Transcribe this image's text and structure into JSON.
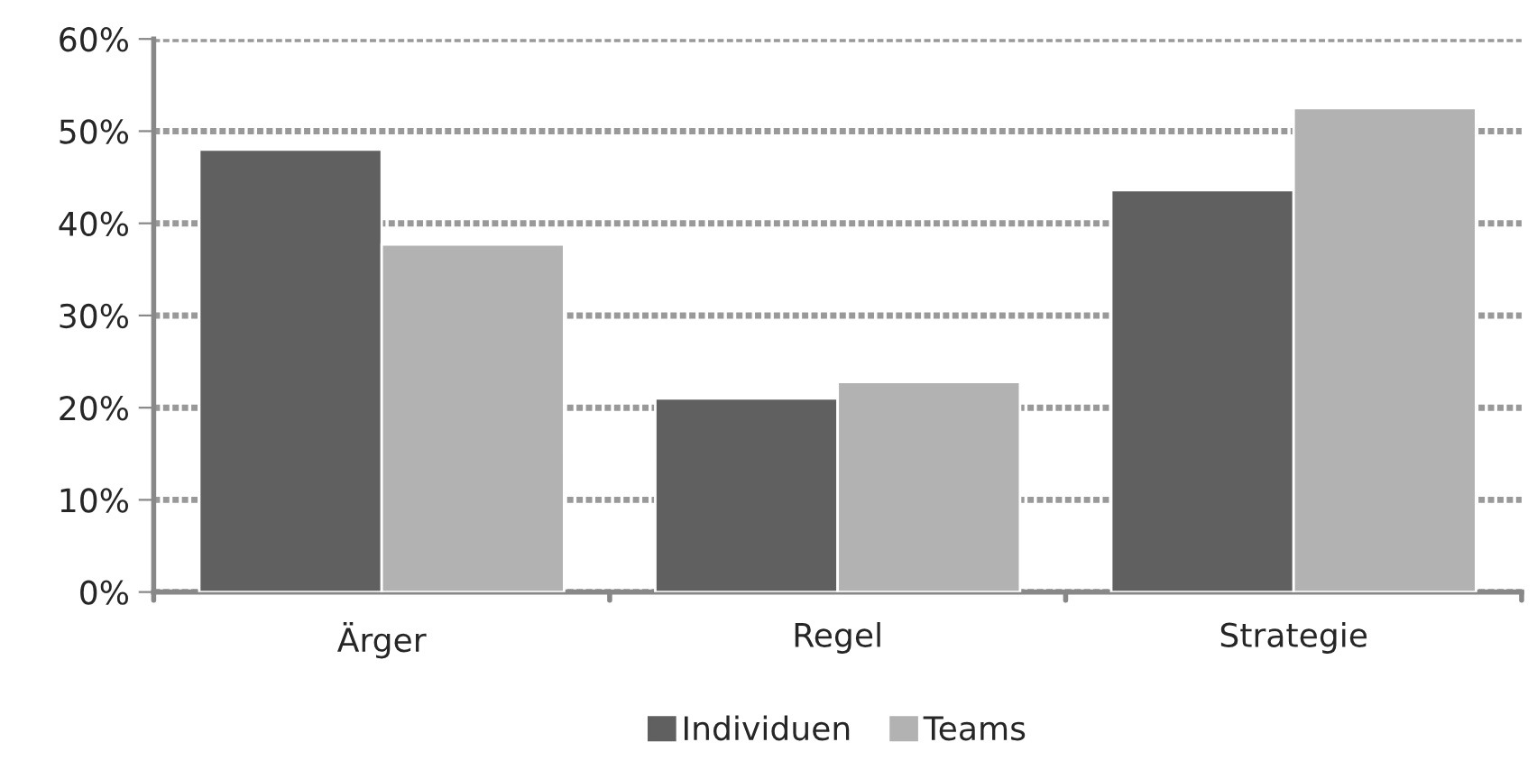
{
  "chart_data": {
    "type": "bar",
    "categories": [
      "Ärger",
      "Regel",
      "Strategie"
    ],
    "series": [
      {
        "name": "Individuen",
        "color": "#606060",
        "values": [
          48,
          21,
          43.6
        ]
      },
      {
        "name": "Teams",
        "color": "#b2b2b2",
        "values": [
          37.7,
          22.8,
          52.5
        ]
      }
    ],
    "ylim": [
      0,
      60
    ],
    "yticks": [
      {
        "value": 0,
        "label": "0%"
      },
      {
        "value": 10,
        "label": "10%"
      },
      {
        "value": 20,
        "label": "20%"
      },
      {
        "value": 30,
        "label": "30%"
      },
      {
        "value": 40,
        "label": "40%"
      },
      {
        "value": 50,
        "label": "50%"
      },
      {
        "value": 60,
        "label": "60%"
      }
    ],
    "grid": "y",
    "legend": "bottom"
  }
}
